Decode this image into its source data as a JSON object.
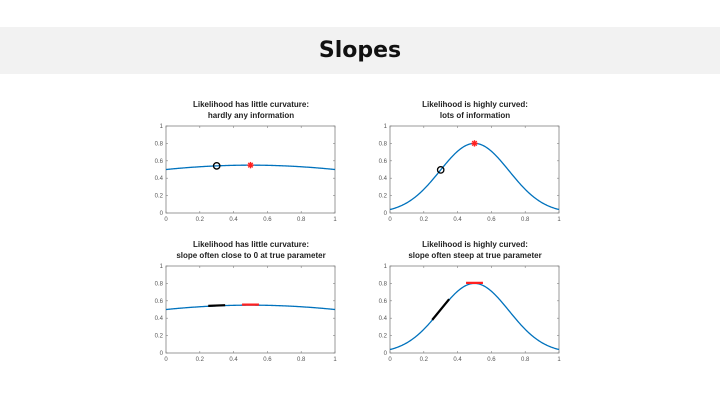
{
  "slide": {
    "title": "Slopes"
  },
  "colors": {
    "curve": "#0072BD",
    "true_marker": "#FF2020",
    "estimate_marker": "#000000",
    "axis": "#808080",
    "header_bg": "#F2F2F2"
  },
  "chart_data": [
    {
      "id": "top-left",
      "type": "line",
      "title_line1": "Likelihood has little curvature:",
      "title_line2": "hardly any information",
      "xlim": [
        0,
        1
      ],
      "ylim": [
        0,
        1
      ],
      "xticks": [
        "0",
        "0.2",
        "0.4",
        "0.6",
        "0.8",
        "1"
      ],
      "yticks": [
        "0",
        "0.2",
        "0.4",
        "0.6",
        "0.8",
        "1"
      ],
      "curve": {
        "shape": "gaussian",
        "center": 0.5,
        "peak": 0.55,
        "edge_value": 0.5
      },
      "markers": [
        {
          "kind": "circle",
          "x": 0.3,
          "label": "estimate"
        },
        {
          "kind": "asterisk",
          "x": 0.5,
          "label": "true parameter"
        }
      ],
      "tangents": []
    },
    {
      "id": "top-right",
      "type": "line",
      "title_line1": "Likelihood is highly curved:",
      "title_line2": "lots of information",
      "xlim": [
        0,
        1
      ],
      "ylim": [
        0,
        1
      ],
      "xticks": [
        "0",
        "0.2",
        "0.4",
        "0.6",
        "0.8",
        "1"
      ],
      "yticks": [
        "0",
        "0.2",
        "0.4",
        "0.6",
        "0.8",
        "1"
      ],
      "curve": {
        "shape": "gaussian",
        "center": 0.5,
        "peak": 0.8,
        "edge_value": 0.04
      },
      "markers": [
        {
          "kind": "circle",
          "x": 0.3,
          "label": "estimate"
        },
        {
          "kind": "asterisk",
          "x": 0.5,
          "label": "true parameter"
        }
      ],
      "tangents": []
    },
    {
      "id": "bottom-left",
      "type": "line",
      "title_line1": "Likelihood has little curvature:",
      "title_line2": "slope often close to 0 at true parameter",
      "xlim": [
        0,
        1
      ],
      "ylim": [
        0,
        1
      ],
      "xticks": [
        "0",
        "0.2",
        "0.4",
        "0.6",
        "0.8",
        "1"
      ],
      "yticks": [
        "0",
        "0.2",
        "0.4",
        "0.6",
        "0.8",
        "1"
      ],
      "curve": {
        "shape": "gaussian",
        "center": 0.5,
        "peak": 0.55,
        "edge_value": 0.5
      },
      "markers": [],
      "tangents": [
        {
          "x": 0.3,
          "half_width": 0.05,
          "color": "black"
        },
        {
          "x": 0.5,
          "half_width": 0.05,
          "color": "red"
        }
      ]
    },
    {
      "id": "bottom-right",
      "type": "line",
      "title_line1": "Likelihood is highly curved:",
      "title_line2": "slope often steep at true parameter",
      "xlim": [
        0,
        1
      ],
      "ylim": [
        0,
        1
      ],
      "xticks": [
        "0",
        "0.2",
        "0.4",
        "0.6",
        "0.8",
        "1"
      ],
      "yticks": [
        "0",
        "0.2",
        "0.4",
        "0.6",
        "0.8",
        "1"
      ],
      "curve": {
        "shape": "gaussian",
        "center": 0.5,
        "peak": 0.8,
        "edge_value": 0.04
      },
      "markers": [],
      "tangents": [
        {
          "x": 0.3,
          "half_width": 0.05,
          "color": "black"
        },
        {
          "x": 0.5,
          "half_width": 0.05,
          "color": "red"
        }
      ]
    }
  ]
}
